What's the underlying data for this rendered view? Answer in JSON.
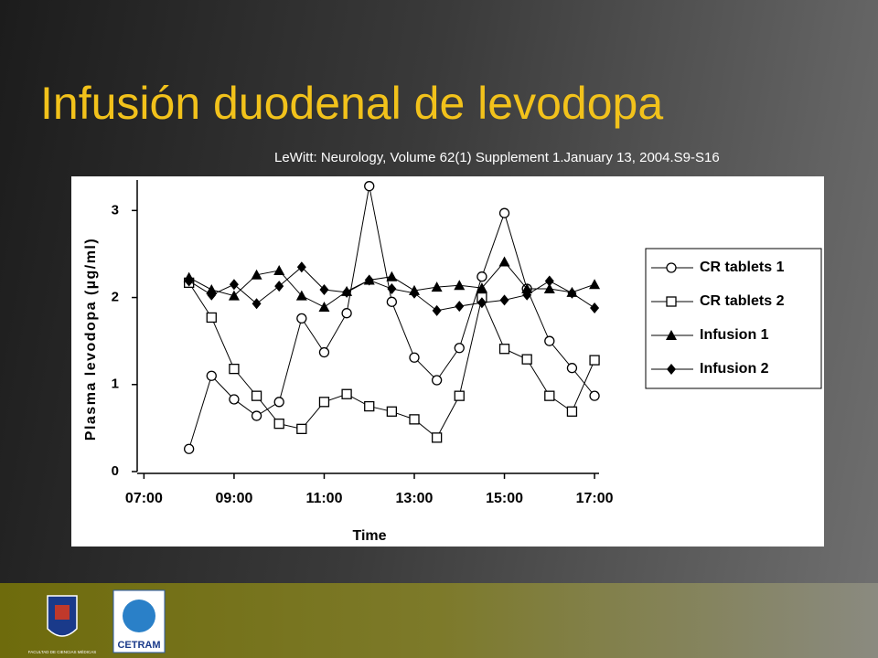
{
  "title": "Infusión duodenal de levodopa",
  "citation": "LeWitt: Neurology, Volume 62(1) Supplement 1.January 13, 2004.S9-S16",
  "footer": {
    "logo_caption": "FACULTAD DE CIENCIAS MÉDICAS",
    "logo_name": "CETRAM"
  },
  "chart_data": {
    "type": "line",
    "x_label": "Time",
    "y_label": "Plasma levodopa (µg/ml)",
    "x": [
      8,
      8.5,
      9,
      9.5,
      10,
      10.5,
      11,
      11.5,
      12,
      12.5,
      13,
      13.5,
      14,
      14.5,
      15,
      15.5,
      16,
      16.5,
      17
    ],
    "xlim": [
      6.85,
      17.1
    ],
    "ylim": [
      0,
      3.35
    ],
    "xticks": [
      {
        "value": 7,
        "label": "07:00"
      },
      {
        "value": 9,
        "label": "09:00"
      },
      {
        "value": 11,
        "label": "11:00"
      },
      {
        "value": 13,
        "label": "13:00"
      },
      {
        "value": 15,
        "label": "15:00"
      },
      {
        "value": 17,
        "label": "17:00"
      }
    ],
    "yticks": [
      0,
      1,
      2,
      3
    ],
    "grid": false,
    "legend": "right",
    "series": [
      {
        "name": "CR tablets 1",
        "color": "#000000",
        "marker": "circle",
        "values": [
          0.26,
          1.1,
          0.83,
          0.64,
          0.8,
          1.76,
          1.37,
          1.82,
          3.28,
          1.95,
          1.31,
          1.05,
          1.42,
          2.24,
          2.97,
          2.1,
          1.5,
          1.19,
          0.87
        ]
      },
      {
        "name": "CR tablets 2",
        "color": "#000000",
        "marker": "square",
        "values": [
          2.17,
          1.77,
          1.18,
          0.87,
          0.55,
          0.49,
          0.8,
          0.89,
          0.75,
          0.69,
          0.6,
          0.39,
          0.87,
          2.0,
          1.41,
          1.29,
          0.87,
          0.69,
          1.28
        ]
      },
      {
        "name": "Infusion 1",
        "color": "#000000",
        "marker": "triangle",
        "values": [
          2.23,
          2.09,
          2.02,
          2.26,
          2.31,
          2.02,
          1.89,
          2.07,
          2.2,
          2.24,
          2.08,
          2.12,
          2.14,
          2.11,
          2.41,
          2.1,
          2.1,
          2.06,
          2.15
        ]
      },
      {
        "name": "Infusion 2",
        "color": "#000000",
        "marker": "diamond",
        "values": [
          2.19,
          2.03,
          2.15,
          1.93,
          2.13,
          2.35,
          2.09,
          2.06,
          2.2,
          2.1,
          2.05,
          1.85,
          1.9,
          1.94,
          1.97,
          2.03,
          2.19,
          2.05,
          1.88
        ]
      }
    ]
  }
}
